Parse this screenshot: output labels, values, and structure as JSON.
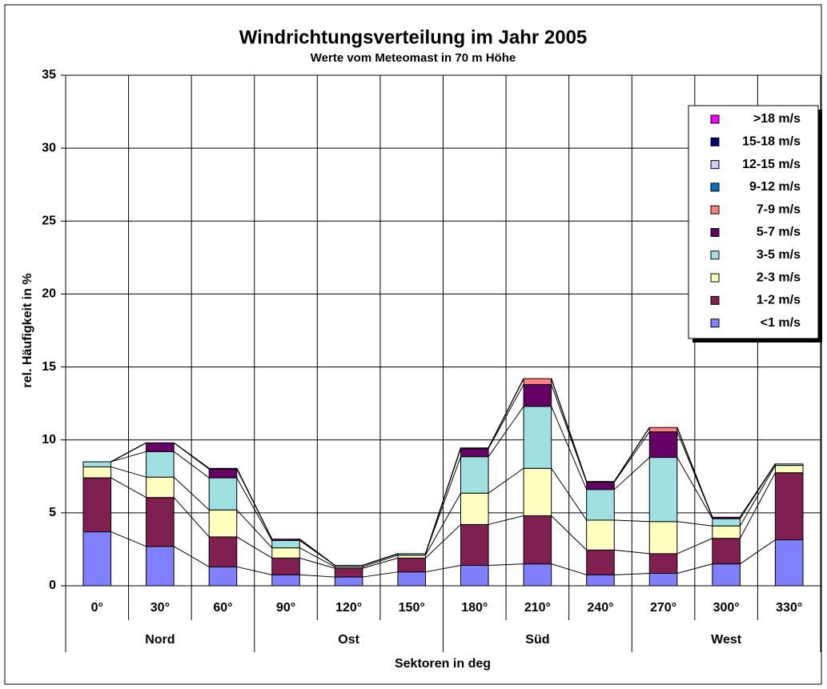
{
  "chart_data": {
    "type": "bar",
    "stacked": true,
    "title": "Windrichtungsverteilung im Jahr 2005",
    "subtitle": "Werte vom Meteomast in 70 m Höhe",
    "y_label": "rel. Häufigkeit in %",
    "x_label": "Sektoren in deg",
    "categories": [
      "0°",
      "30°",
      "60°",
      "90°",
      "120°",
      "150°",
      "180°",
      "210°",
      "240°",
      "270°",
      "300°",
      "330°"
    ],
    "groups": [
      "Nord",
      "Ost",
      "Süd",
      "West"
    ],
    "ylim": [
      0,
      35
    ],
    "yticks": [
      0,
      5,
      10,
      15,
      20,
      25,
      30,
      35
    ],
    "grid": true,
    "legend": "upper right",
    "series": [
      {
        "name": "<1 m/s",
        "color": "#8080ff",
        "values": [
          3.7,
          2.7,
          1.3,
          0.75,
          0.6,
          0.95,
          1.4,
          1.5,
          0.75,
          0.85,
          1.5,
          3.15
        ]
      },
      {
        "name": "1-2 m/s",
        "color": "#802050",
        "values": [
          3.7,
          3.35,
          2.05,
          1.15,
          0.6,
          0.95,
          2.8,
          3.3,
          1.7,
          1.35,
          1.75,
          4.6
        ]
      },
      {
        "name": "2-3 m/s",
        "color": "#ffffc0",
        "values": [
          0.75,
          1.4,
          1.85,
          0.7,
          0.1,
          0.2,
          2.15,
          3.25,
          2.05,
          2.2,
          0.85,
          0.5
        ]
      },
      {
        "name": "3-5 m/s",
        "color": "#a0e0e0",
        "values": [
          0.35,
          1.75,
          2.2,
          0.5,
          0.1,
          0.1,
          2.5,
          4.25,
          2.1,
          4.4,
          0.5,
          0.1
        ]
      },
      {
        "name": "5-7 m/s",
        "color": "#660066",
        "values": [
          0,
          0.6,
          0.6,
          0.1,
          0,
          0,
          0.55,
          1.5,
          0.5,
          1.75,
          0.1,
          0
        ]
      },
      {
        "name": "7-9 m/s",
        "color": "#ff8080",
        "values": [
          0,
          0,
          0.05,
          0,
          0,
          0,
          0.05,
          0.4,
          0.05,
          0.3,
          0,
          0
        ]
      },
      {
        "name": "9-12 m/s",
        "color": "#0070c0",
        "values": [
          0,
          0,
          0,
          0,
          0,
          0,
          0,
          0,
          0,
          0,
          0,
          0
        ]
      },
      {
        "name": "12-15 m/s",
        "color": "#ccccff",
        "values": [
          0,
          0,
          0,
          0,
          0,
          0,
          0,
          0,
          0,
          0,
          0,
          0
        ]
      },
      {
        "name": "15-18 m/s",
        "color": "#000080",
        "values": [
          0,
          0,
          0,
          0,
          0,
          0,
          0,
          0,
          0,
          0,
          0,
          0
        ]
      },
      {
        "name": ">18 m/s",
        "color": "#ff00ff",
        "values": [
          0,
          0,
          0,
          0,
          0,
          0,
          0,
          0,
          0,
          0,
          0,
          0
        ]
      }
    ]
  }
}
